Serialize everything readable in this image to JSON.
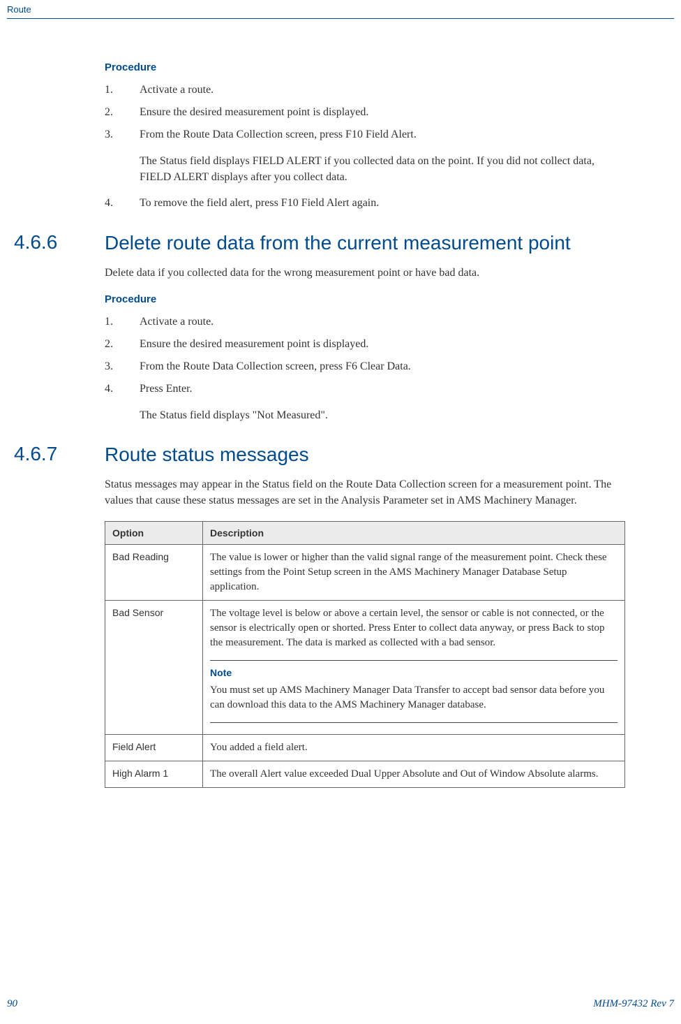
{
  "header": {
    "section": "Route"
  },
  "sec1": {
    "procedure_label": "Procedure",
    "steps": [
      "Activate a route.",
      "Ensure the desired measurement point is displayed.",
      "From the Route Data Collection screen, press F10 Field Alert."
    ],
    "after3": "The Status field displays FIELD ALERT if you collected data on the point. If you did not collect data, FIELD ALERT displays after you collect data.",
    "step4": "To remove the field alert, press F10 Field Alert again."
  },
  "sec466": {
    "num": "4.6.6",
    "title": "Delete route data from the current measurement point",
    "intro": "Delete data if you collected data for the wrong measurement point or have bad data.",
    "procedure_label": "Procedure",
    "steps": [
      "Activate a route.",
      "Ensure the desired measurement point is displayed.",
      "From the Route Data Collection screen, press F6 Clear Data.",
      "Press Enter."
    ],
    "after": "The Status field displays \"Not Measured\"."
  },
  "sec467": {
    "num": "4.6.7",
    "title": "Route status messages",
    "intro": "Status messages may appear in the Status field on the Route Data Collection screen for a measurement point. The values that cause these status messages are set in the Analysis Parameter set in AMS Machinery Manager.",
    "table": {
      "headers": [
        "Option",
        "Description"
      ],
      "rows": [
        {
          "opt": "Bad Reading",
          "desc": "The value is lower or higher than the valid signal range of the measurement point. Check these settings from the Point Setup screen in the AMS Machinery Manager Database Setup application."
        },
        {
          "opt": "Bad Sensor",
          "desc": "The voltage level is below or above a certain level, the sensor or cable is not connected, or the sensor is electrically open or shorted. Press Enter to collect data anyway, or press Back to stop the measurement. The data is marked as collected with a bad sensor.",
          "note_label": "Note",
          "note": "You must set up AMS Machinery Manager Data Transfer to accept bad sensor data before you can download this data to the AMS Machinery Manager database."
        },
        {
          "opt": "Field Alert",
          "desc": "You added a field alert."
        },
        {
          "opt": "High Alarm 1",
          "desc": "The overall Alert value exceeded Dual Upper Absolute and Out of Window Absolute alarms."
        }
      ]
    }
  },
  "footer": {
    "page": "90",
    "doc": "MHM-97432 Rev 7"
  }
}
